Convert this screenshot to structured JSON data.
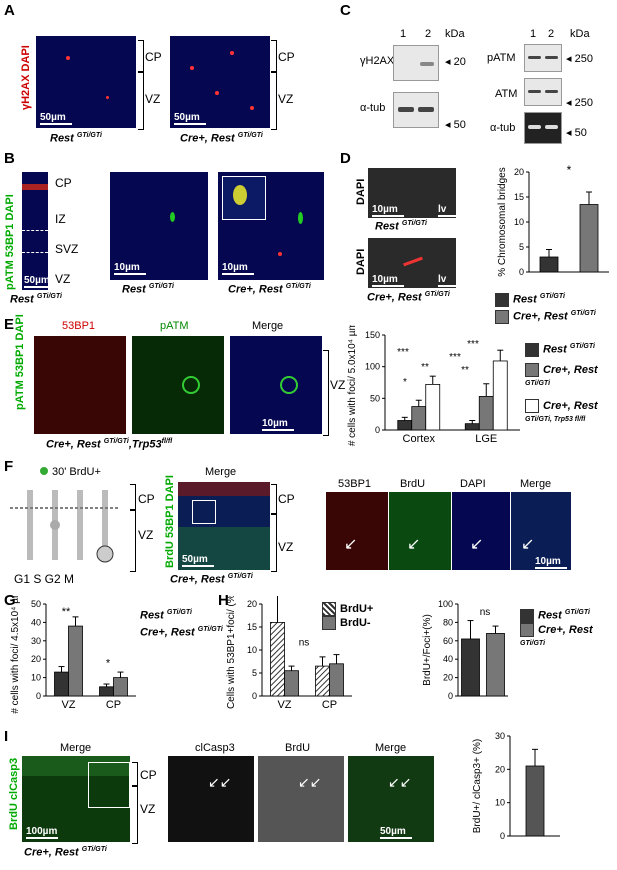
{
  "panels": {
    "A": {
      "letter": "A",
      "stain": "γH2AX DAPI",
      "scale": "50µm",
      "zones": [
        "CP",
        "VZ"
      ],
      "captions": [
        "Rest",
        "Cre+, Rest"
      ],
      "sup": "GTi/GTi"
    },
    "B": {
      "letter": "B",
      "stain": "pATM 53BP1 DAPI",
      "scale": "10µm",
      "zones": [
        "CP",
        "IZ",
        "SVZ",
        "VZ"
      ],
      "captions": [
        "Rest",
        "Rest",
        "Cre+, Rest"
      ],
      "scale_overview": "50µm",
      "sup": "GTi/GTi"
    },
    "C": {
      "letter": "C",
      "lanes": [
        "1",
        "2"
      ],
      "unit": "kDa",
      "left_rows": [
        {
          "label": "γH2AX",
          "kda": "20"
        },
        {
          "label": "α-tub",
          "kda": "50"
        }
      ],
      "right_rows": [
        {
          "label": "pATM",
          "kda": "250"
        },
        {
          "label": "ATM",
          "kda": "250"
        },
        {
          "label": "α-tub",
          "kda": "50"
        }
      ]
    },
    "D": {
      "letter": "D",
      "stain": "DAPI",
      "scale": "10µm",
      "lv": "lv",
      "captions": [
        "Rest",
        "Cre+, Rest"
      ],
      "sup": "GTi/GTi",
      "ylabel": "% Chromosomal bridges",
      "sig": "*"
    },
    "E": {
      "letter": "E",
      "headers": [
        "53BP1",
        "pATM",
        "Merge"
      ],
      "stain": "pATM 53BP1 DAPI",
      "scale": "10µm",
      "zone": "VZ",
      "caption": "Cre+, Rest",
      "sup": "GTi/GTi",
      "trp": ",Trp53",
      "trp_sup": "fl/fl",
      "ylabel": "# cells with foci/ 5.0x10⁴ µm²",
      "sig": [
        "*",
        "**",
        "***",
        "**",
        "***",
        "***"
      ]
    },
    "F": {
      "letter": "F",
      "pulse": "30' BrdU+",
      "phases": "G1 S G2 M",
      "headers": [
        "Merge",
        "53BP1",
        "BrdU",
        "DAPI",
        "Merge"
      ],
      "stain": "BrdU 53BP1 DAPI",
      "scale": "50µm",
      "scale2": "10µm",
      "zones": [
        "CP",
        "VZ"
      ],
      "caption": "Cre+, Rest",
      "sup": "GTi/GTi"
    },
    "G": {
      "letter": "G",
      "ylabel": "# cells with foci/ 4.5x10⁴ µm²",
      "sig": [
        "**",
        "*"
      ]
    },
    "H": {
      "letter": "H",
      "ylabel1": "Cells with 53BP1+foci/ (%)",
      "ylabel2": "BrdU+/Foci+(%)",
      "sig": [
        "***",
        "ns",
        "ns"
      ]
    },
    "I": {
      "letter": "I",
      "headers": [
        "Merge",
        "clCasp3",
        "BrdU",
        "Merge"
      ],
      "stain": "BrdU clCasp3",
      "scale": "100µm",
      "scale2": "50µm",
      "zones": [
        "CP",
        "VZ"
      ],
      "caption": "Cre+, Rest",
      "sup": "GTi/GTi",
      "ylabel": "BrdU+/ clCasp3+ (%)"
    }
  },
  "legends": {
    "two": [
      {
        "name": "Rest",
        "sup": "GTi/GTi",
        "color": "#333333"
      },
      {
        "name": "Cre+, Rest",
        "sup": "GTi/GTi",
        "color": "#777777"
      }
    ],
    "three": [
      {
        "name": "Rest",
        "sup": "GTi/GTi",
        "color": "#333333"
      },
      {
        "name": "Cre+, Rest",
        "sup": "GTi/GTi",
        "color": "#777777"
      },
      {
        "name": "Cre+, Rest",
        "sup": "GTi/GTi, Trp53 fl/fl",
        "color": "#ffffff"
      }
    ],
    "brdu": [
      {
        "name": "BrdU+",
        "color": "hatch"
      },
      {
        "name": "BrdU-",
        "color": "#777777"
      }
    ]
  },
  "chart_data": [
    {
      "id": "D",
      "type": "bar",
      "categories": [
        "Rest GTi/GTi",
        "Cre+, Rest GTi/GTi"
      ],
      "values": [
        3,
        13.5
      ],
      "errors": [
        1.5,
        2.5
      ],
      "ylim": [
        0,
        20
      ],
      "yticks": [
        0,
        5,
        10,
        15,
        20
      ],
      "ylabel": "% Chromosomal bridges",
      "colors": [
        "#333333",
        "#777777"
      ]
    },
    {
      "id": "E",
      "type": "bar",
      "categories": [
        "Cortex",
        "LGE"
      ],
      "series": [
        {
          "name": "Rest GTi/GTi",
          "values": [
            15,
            10
          ],
          "errors": [
            5,
            5
          ]
        },
        {
          "name": "Cre+, Rest GTi/GTi",
          "values": [
            37,
            53
          ],
          "errors": [
            10,
            20
          ]
        },
        {
          "name": "Cre+, Rest GTi/GTi, Trp53 fl/fl",
          "values": [
            72,
            109
          ],
          "errors": [
            13,
            17
          ]
        }
      ],
      "ylim": [
        0,
        150
      ],
      "yticks": [
        0,
        50,
        100,
        150
      ],
      "ylabel": "# cells with foci/ 5.0x10⁴ µm²"
    },
    {
      "id": "G",
      "type": "bar",
      "categories": [
        "VZ",
        "CP"
      ],
      "series": [
        {
          "name": "Rest GTi/GTi",
          "values": [
            13,
            5
          ],
          "errors": [
            3,
            1.5
          ]
        },
        {
          "name": "Cre+, Rest GTi/GTi",
          "values": [
            38,
            10
          ],
          "errors": [
            5,
            3
          ]
        }
      ],
      "ylim": [
        0,
        50
      ],
      "yticks": [
        0,
        10,
        20,
        30,
        40,
        50
      ],
      "ylabel": "# cells with foci/ 4.5x10⁴ µm²"
    },
    {
      "id": "H1",
      "type": "bar",
      "categories": [
        "VZ",
        "CP"
      ],
      "series": [
        {
          "name": "BrdU+",
          "values": [
            16,
            6.5
          ],
          "errors": [
            6,
            2
          ]
        },
        {
          "name": "BrdU-",
          "values": [
            5.5,
            7
          ],
          "errors": [
            1,
            2
          ]
        }
      ],
      "ylim": [
        0,
        20
      ],
      "yticks": [
        0,
        5,
        10,
        15,
        20
      ],
      "ylabel": "Cells with 53BP1+foci/ (%)"
    },
    {
      "id": "H2",
      "type": "bar",
      "categories": [
        "Rest GTi/GTi",
        "Cre+, Rest GTi/GTi"
      ],
      "values": [
        62,
        68
      ],
      "errors": [
        20,
        8
      ],
      "ylim": [
        0,
        100
      ],
      "yticks": [
        0,
        20,
        40,
        60,
        80,
        100
      ],
      "ylabel": "BrdU+/Foci+(%)",
      "colors": [
        "#333333",
        "#777777"
      ]
    },
    {
      "id": "I",
      "type": "bar",
      "categories": [
        "Cre+, Rest GTi/GTi"
      ],
      "values": [
        21
      ],
      "errors": [
        5
      ],
      "ylim": [
        0,
        30
      ],
      "yticks": [
        0,
        10,
        20,
        30
      ],
      "ylabel": "BrdU+/ clCasp3+ (%)",
      "colors": [
        "#555555"
      ]
    }
  ]
}
